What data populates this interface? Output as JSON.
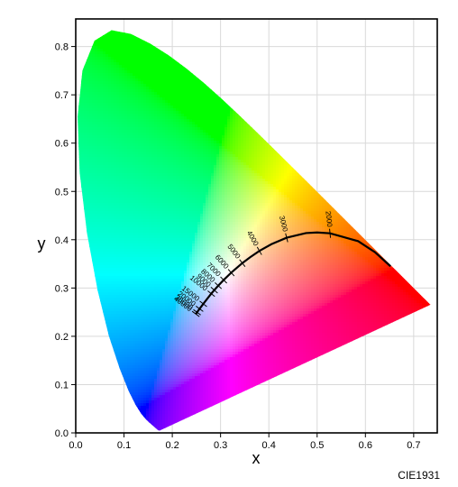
{
  "chart_data": {
    "type": "chromaticity-diagram",
    "xlabel": "x",
    "ylabel": "y",
    "xlim": [
      0,
      0.74
    ],
    "ylim": [
      0,
      0.85
    ],
    "x_ticks": [
      "0.0",
      "0.1",
      "0.2",
      "0.3",
      "0.4",
      "0.5",
      "0.6",
      "0.7"
    ],
    "y_ticks": [
      "0.0",
      "0.1",
      "0.2",
      "0.3",
      "0.4",
      "0.5",
      "0.6",
      "0.7",
      "0.8"
    ],
    "grid": true,
    "caption": "CIE1931",
    "planckian_locus": {
      "labels": [
        "2000",
        "3000",
        "4000",
        "5000",
        "6000",
        "7000",
        "8000",
        "9000",
        "10000",
        "15000",
        "20000",
        "30000",
        "40000"
      ],
      "ticks": [
        {
          "T": "2000",
          "x": 0.5267,
          "y": 0.4133
        },
        {
          "T": "3000",
          "x": 0.4369,
          "y": 0.4041
        },
        {
          "T": "4000",
          "x": 0.3805,
          "y": 0.3768
        },
        {
          "T": "5000",
          "x": 0.3451,
          "y": 0.3516
        },
        {
          "T": "6000",
          "x": 0.3221,
          "y": 0.3318
        },
        {
          "T": "7000",
          "x": 0.3064,
          "y": 0.3166
        },
        {
          "T": "8000",
          "x": 0.2952,
          "y": 0.3048
        },
        {
          "T": "9000",
          "x": 0.2869,
          "y": 0.2956
        },
        {
          "T": "10000",
          "x": 0.2807,
          "y": 0.2883
        },
        {
          "T": "15000",
          "x": 0.2642,
          "y": 0.2672
        },
        {
          "T": "20000",
          "x": 0.2565,
          "y": 0.2569
        },
        {
          "T": "30000",
          "x": 0.2513,
          "y": 0.2497
        },
        {
          "T": "40000",
          "x": 0.2487,
          "y": 0.2462
        }
      ],
      "curve": [
        [
          0.652,
          0.345
        ],
        [
          0.62,
          0.374
        ],
        [
          0.585,
          0.397
        ],
        [
          0.5267,
          0.4133
        ],
        [
          0.5,
          0.415
        ],
        [
          0.4769,
          0.4137
        ],
        [
          0.4369,
          0.4041
        ],
        [
          0.4053,
          0.3907
        ],
        [
          0.3805,
          0.3768
        ],
        [
          0.3609,
          0.3635
        ],
        [
          0.3451,
          0.3516
        ],
        [
          0.3221,
          0.3318
        ],
        [
          0.3064,
          0.3166
        ],
        [
          0.2952,
          0.3048
        ],
        [
          0.2869,
          0.2956
        ],
        [
          0.2807,
          0.2883
        ],
        [
          0.2642,
          0.2672
        ],
        [
          0.2565,
          0.2569
        ],
        [
          0.2513,
          0.2497
        ],
        [
          0.2487,
          0.2462
        ]
      ]
    }
  }
}
